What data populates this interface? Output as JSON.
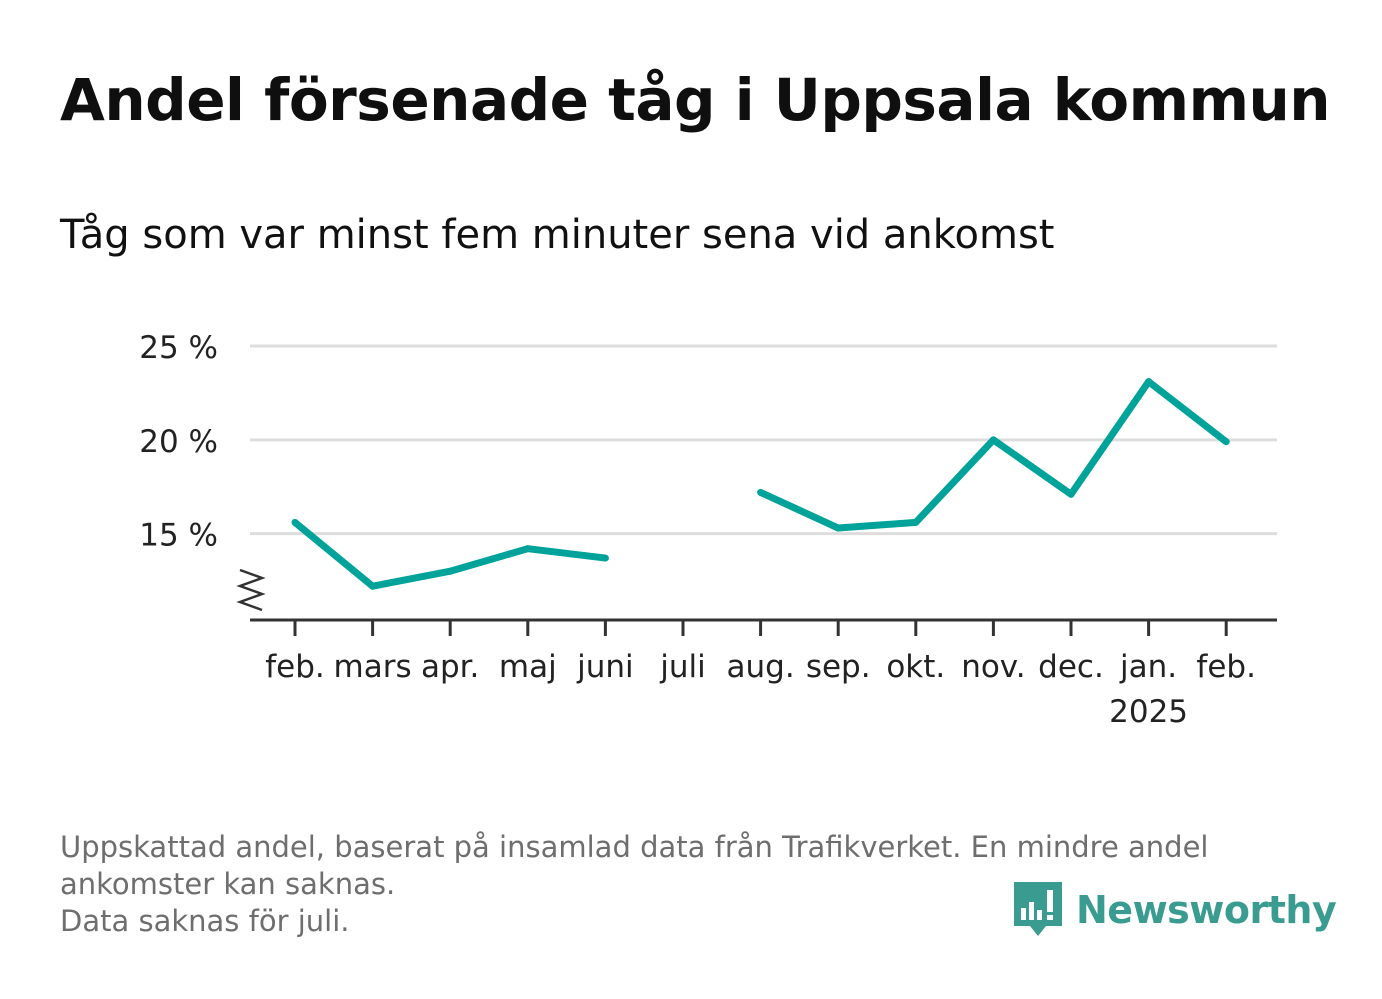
{
  "header": {
    "title": "Andel försenade tåg i Uppsala kommun",
    "subtitle": "Tåg som var minst fem minuter sena vid ankomst"
  },
  "chart_data": {
    "type": "line",
    "title": "Andel försenade tåg i Uppsala kommun",
    "subtitle": "Tåg som var minst fem minuter sena vid ankomst",
    "xlabel": "",
    "ylabel": "",
    "categories": [
      "feb.",
      "mars",
      "apr.",
      "maj",
      "juni",
      "juli",
      "aug.",
      "sep.",
      "okt.",
      "nov.",
      "dec.",
      "jan.",
      "feb."
    ],
    "year_labels": [
      {
        "category_index": 11,
        "label": "2025"
      }
    ],
    "series": [
      {
        "values": [
          15.6,
          12.2,
          13.0,
          14.2,
          13.7,
          null,
          17.2,
          15.3,
          15.6,
          20.0,
          17.1,
          23.1,
          19.9
        ]
      }
    ],
    "y_ticks": [
      {
        "value": 15,
        "label": "15 %"
      },
      {
        "value": 20,
        "label": "20 %"
      },
      {
        "value": 25,
        "label": "25 %"
      }
    ],
    "ylim": [
      10.4,
      25
    ],
    "y_axis_break": true,
    "grid": true,
    "legend": "none",
    "colors": {
      "line": "#00a39a",
      "grid": "#dddddd",
      "axis": "#333333"
    }
  },
  "footer": {
    "note_lines": [
      "Uppskattad andel, baserat på insamlad data från Trafikverket. En mindre andel",
      "ankomster kan saknas.",
      "Data saknas för juli."
    ],
    "brand": "Newsworthy",
    "brand_icon": "newsworthy-logo-icon",
    "brand_color": "#3a9c90"
  }
}
